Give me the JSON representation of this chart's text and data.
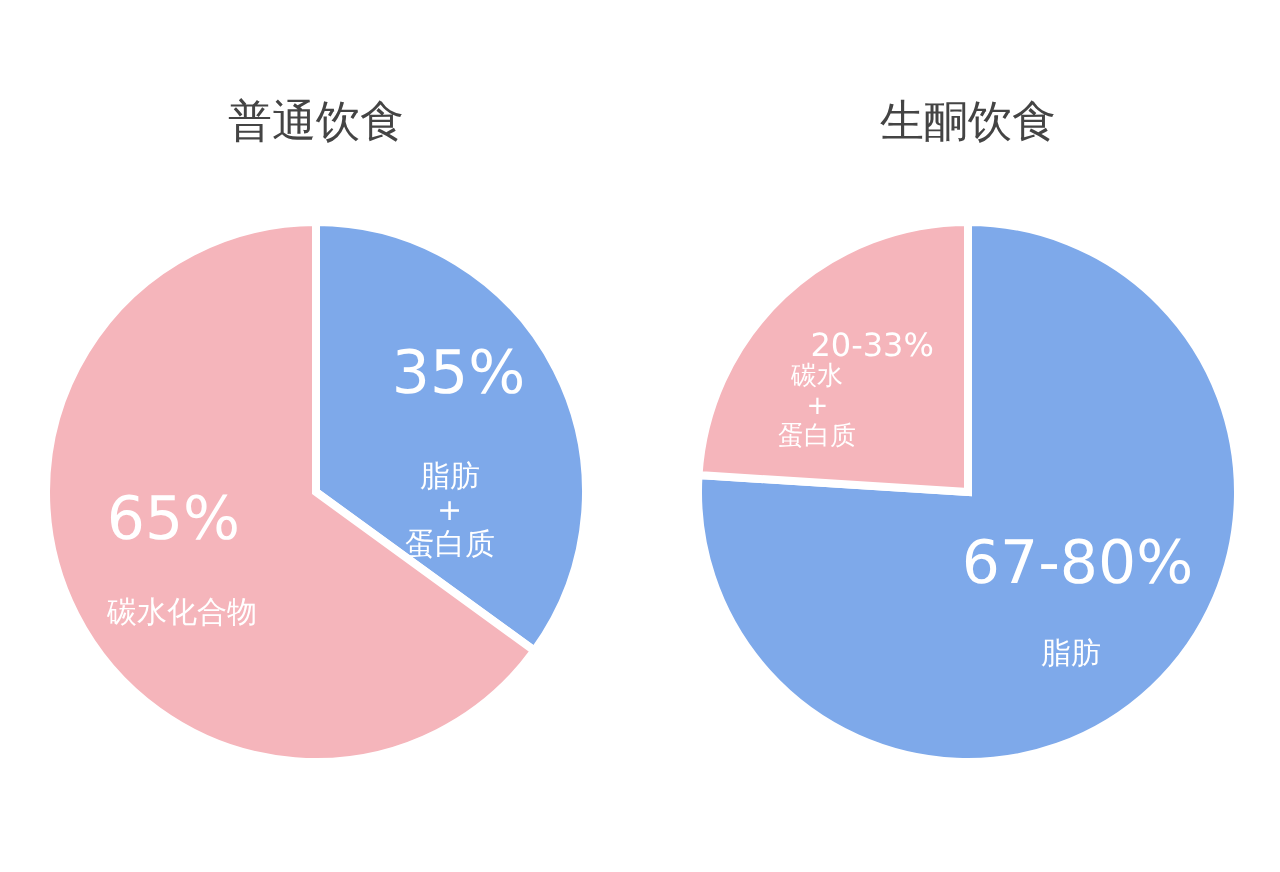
{
  "chart_data": [
    {
      "type": "pie",
      "title": "普通饮食",
      "categories": [
        "脂肪\n+\n蛋白质",
        "碳水化合物"
      ],
      "values": [
        35,
        65
      ],
      "colors": [
        "#7ea9ea",
        "#f5b5bb"
      ],
      "value_labels": [
        "35%",
        "65%"
      ]
    },
    {
      "type": "pie",
      "title": "生酮饮食",
      "categories": [
        "脂肪",
        "碳水\n+\n蛋白质"
      ],
      "values": [
        76,
        24
      ],
      "colors": [
        "#7ea9ea",
        "#f5b5bb"
      ],
      "annotations": [
        "67-80%",
        "20-33%"
      ]
    }
  ]
}
